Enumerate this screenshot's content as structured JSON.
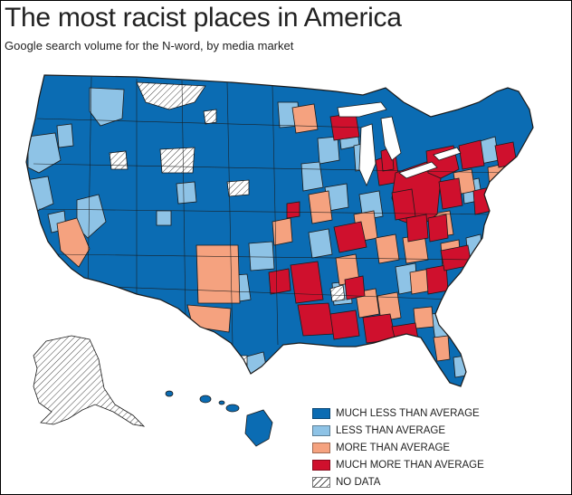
{
  "title": "The most racist places in America",
  "subtitle": "Google search volume for the N-word, by media market",
  "colors": {
    "much_less": "#0b6cb3",
    "less": "#8ec3e6",
    "more": "#f5a27f",
    "much_more": "#cf102d",
    "no_data": "#ffffff",
    "border": "#1a1a1a"
  },
  "legend": [
    {
      "label": "MUCH LESS THAN AVERAGE",
      "color": "#0b6cb3",
      "pattern": "solid"
    },
    {
      "label": "LESS THAN AVERAGE",
      "color": "#8ec3e6",
      "pattern": "solid"
    },
    {
      "label": "MORE THAN AVERAGE",
      "color": "#f5a27f",
      "pattern": "solid"
    },
    {
      "label": "MUCH MORE THAN AVERAGE",
      "color": "#cf102d",
      "pattern": "solid"
    },
    {
      "label": "NO DATA",
      "color": "#ffffff",
      "pattern": "hatch"
    }
  ]
}
